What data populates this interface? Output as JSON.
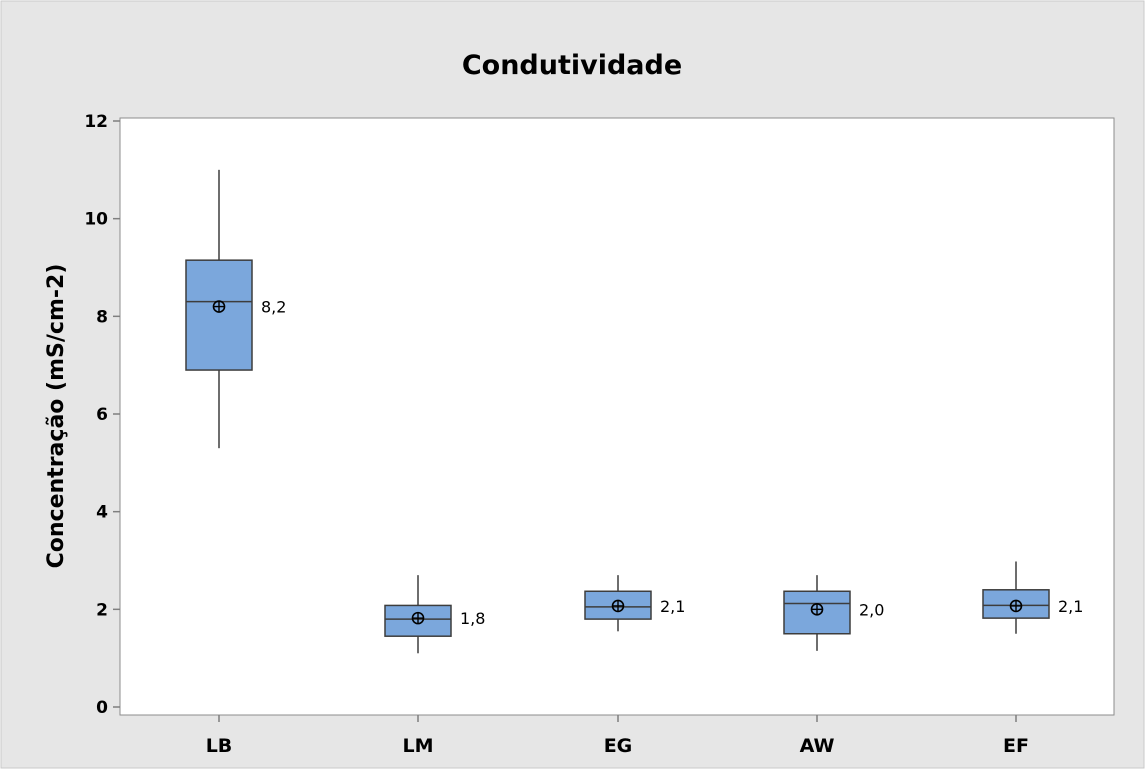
{
  "chart_data": {
    "type": "boxplot",
    "title": "Condutividade",
    "xlabel": "",
    "ylabel": "Concentração (mS/cm-2)",
    "ylim": [
      0,
      12
    ],
    "yticks": [
      0,
      2,
      4,
      6,
      8,
      10,
      12
    ],
    "grid": false,
    "legend": "none",
    "categories": [
      "LB",
      "LM",
      "EG",
      "AW",
      "EF"
    ],
    "boxes": [
      {
        "min": 5.3,
        "q1": 6.9,
        "median": 8.3,
        "q3": 9.15,
        "max": 11.0,
        "mean": 8.2,
        "mean_label": "8,2"
      },
      {
        "min": 1.1,
        "q1": 1.45,
        "median": 1.8,
        "q3": 2.08,
        "max": 2.7,
        "mean": 1.82,
        "mean_label": "1,8"
      },
      {
        "min": 1.55,
        "q1": 1.8,
        "median": 2.05,
        "q3": 2.37,
        "max": 2.7,
        "mean": 2.07,
        "mean_label": "2,1"
      },
      {
        "min": 1.15,
        "q1": 1.5,
        "median": 2.12,
        "q3": 2.37,
        "max": 2.7,
        "mean": 2.0,
        "mean_label": "2,0"
      },
      {
        "min": 1.5,
        "q1": 1.82,
        "median": 2.08,
        "q3": 2.4,
        "max": 2.98,
        "mean": 2.07,
        "mean_label": "2,1"
      }
    ],
    "colors": {
      "background": "#e6e6e6",
      "plot_area": "#ffffff",
      "box_fill": "#7ba7dc",
      "box_stroke": "#3d3d3d",
      "axis": "#7f7f7f"
    }
  }
}
